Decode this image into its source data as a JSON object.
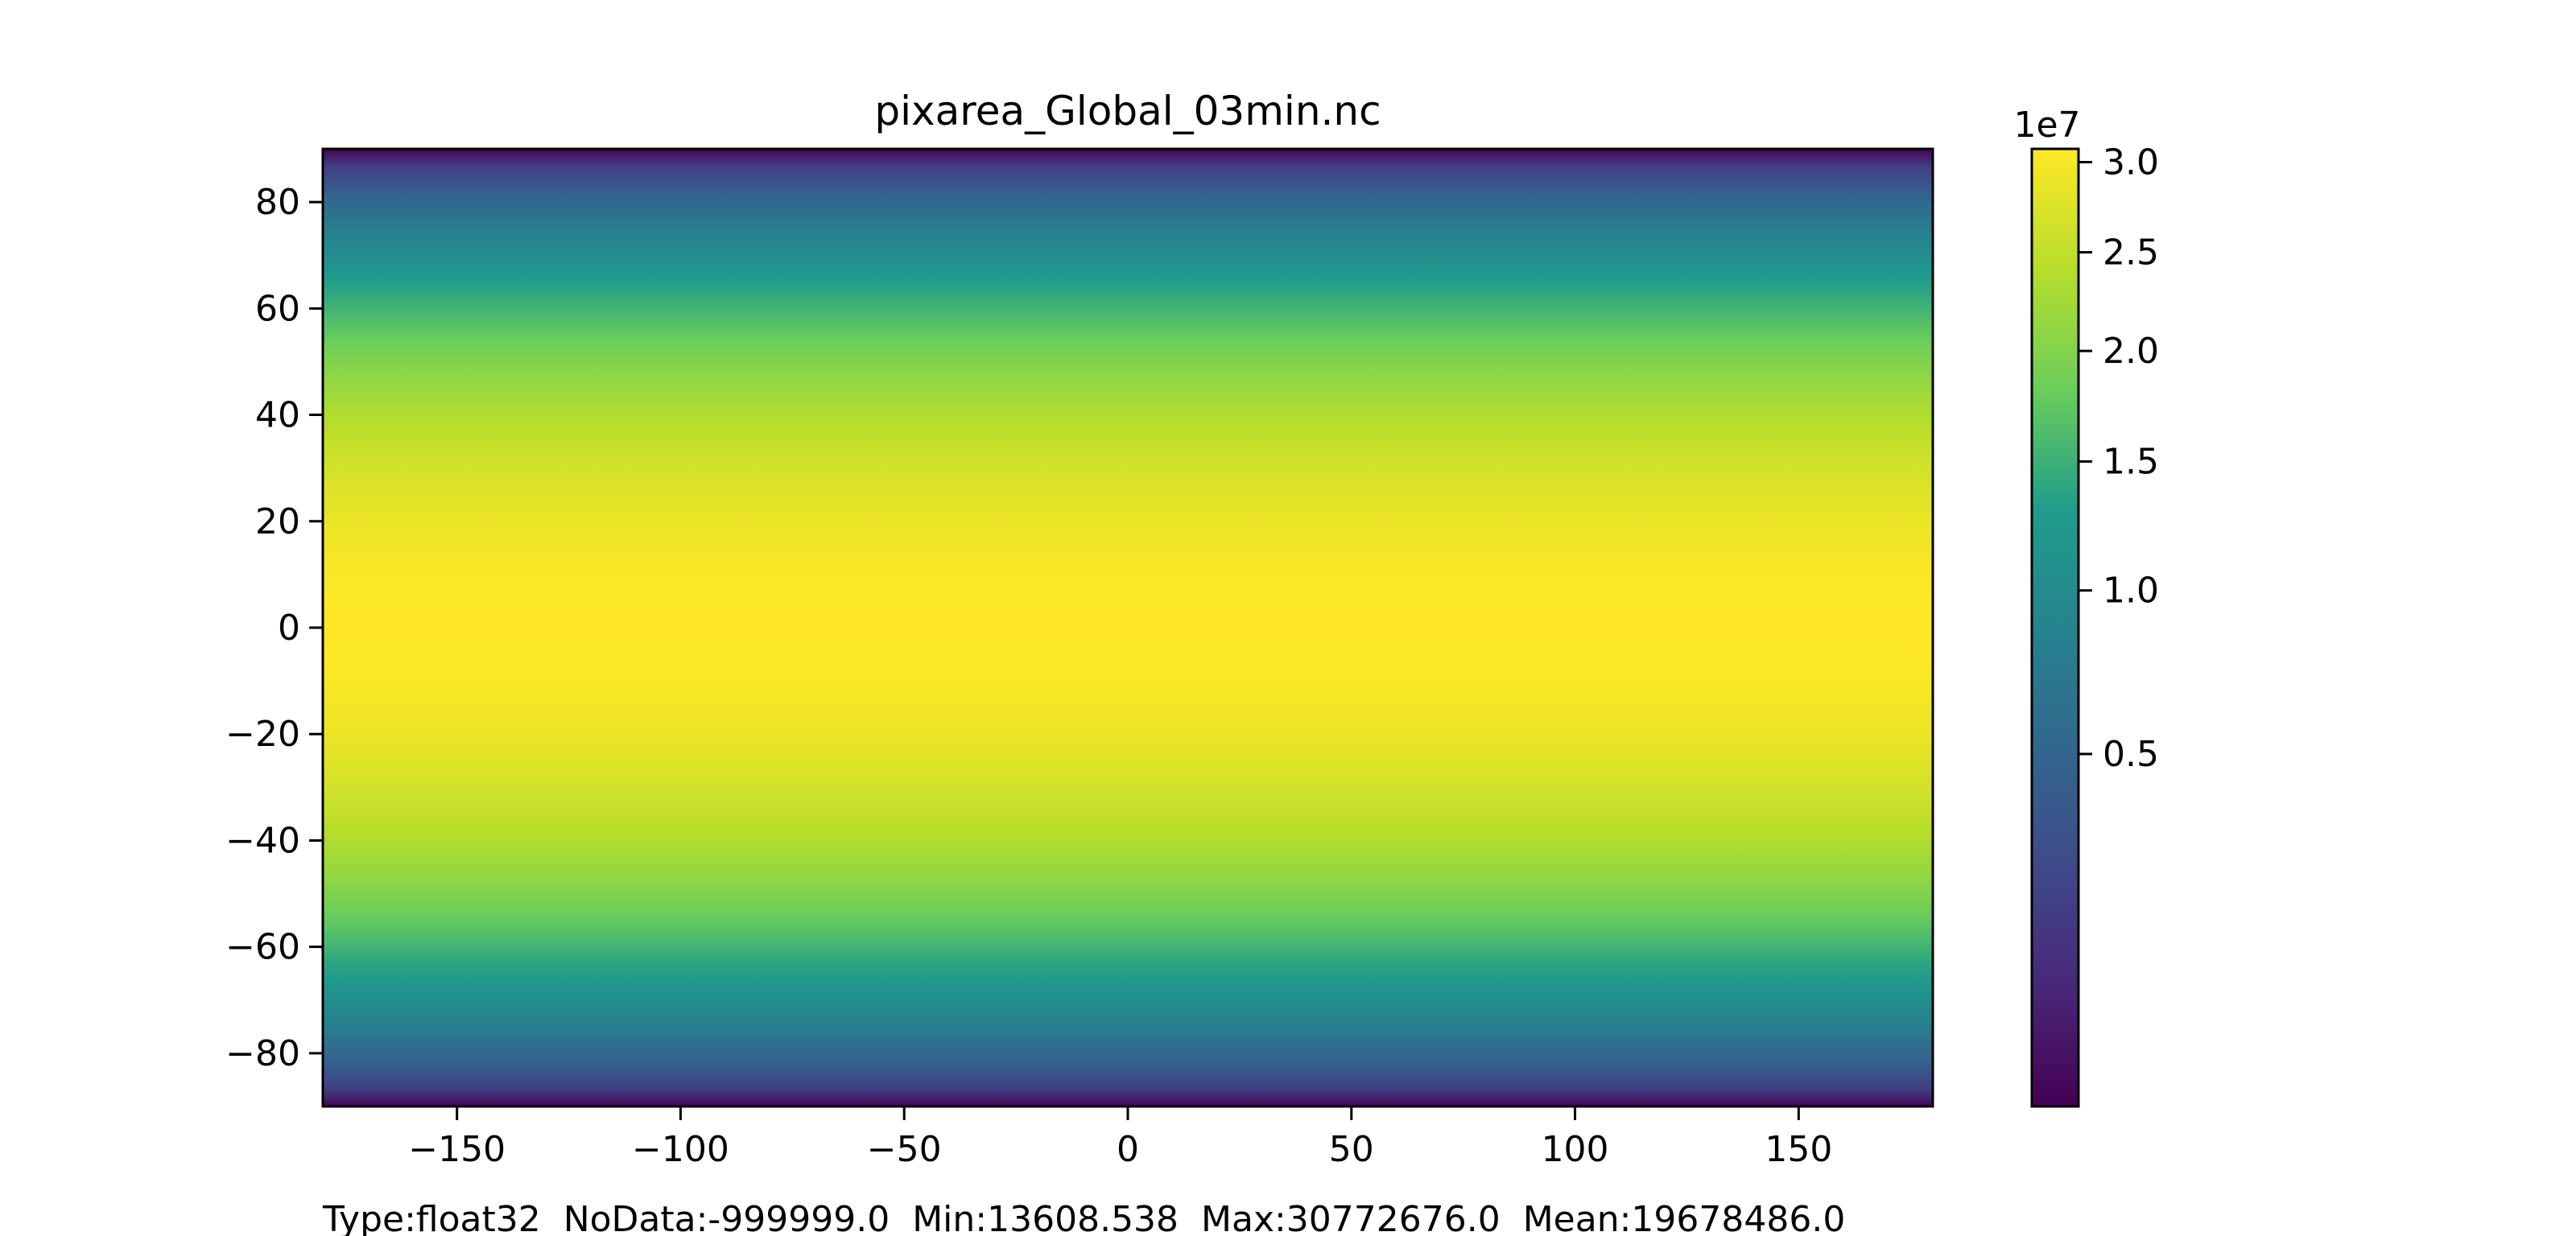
{
  "chart_data": {
    "type": "heatmap",
    "title": "pixarea_Global_03min.nc",
    "xlabel": "",
    "ylabel": "",
    "xlim": [
      -180,
      180
    ],
    "ylim": [
      -90,
      90
    ],
    "x_ticks": [
      -150,
      -100,
      -50,
      0,
      50,
      100,
      150
    ],
    "x_tick_labels": [
      "−150",
      "−100",
      "−50",
      "0",
      "50",
      "100",
      "150"
    ],
    "y_ticks": [
      80,
      60,
      40,
      20,
      0,
      -20,
      -40,
      -60,
      -80
    ],
    "y_tick_labels": [
      "80",
      "60",
      "40",
      "20",
      "0",
      "−20",
      "−40",
      "−60",
      "−80"
    ],
    "grid": false,
    "colormap": "viridis",
    "field_description": "pixel area varies with latitude: max at equator, min at poles, proportional to cos(latitude)",
    "colorbar": {
      "placement": "right",
      "scale": "nonlinear",
      "multiplier_label": "1e7",
      "vmin": 13608.538,
      "vmax": 30772676.0,
      "ticks": [
        3.0,
        2.5,
        2.0,
        1.5,
        1.0,
        0.5
      ],
      "tick_labels": [
        "3.0",
        "2.5",
        "2.0",
        "1.5",
        "1.0",
        "0.5"
      ]
    },
    "footer": "Type:float32  NoData:-999999.0  Min:13608.538  Max:30772676.0  Mean:19678486.0"
  },
  "colors": {
    "viridis": [
      "#440154",
      "#482777",
      "#3f4a8a",
      "#31678e",
      "#26838f",
      "#1f9d8a",
      "#6cce5a",
      "#b6de2b",
      "#fee825"
    ]
  }
}
